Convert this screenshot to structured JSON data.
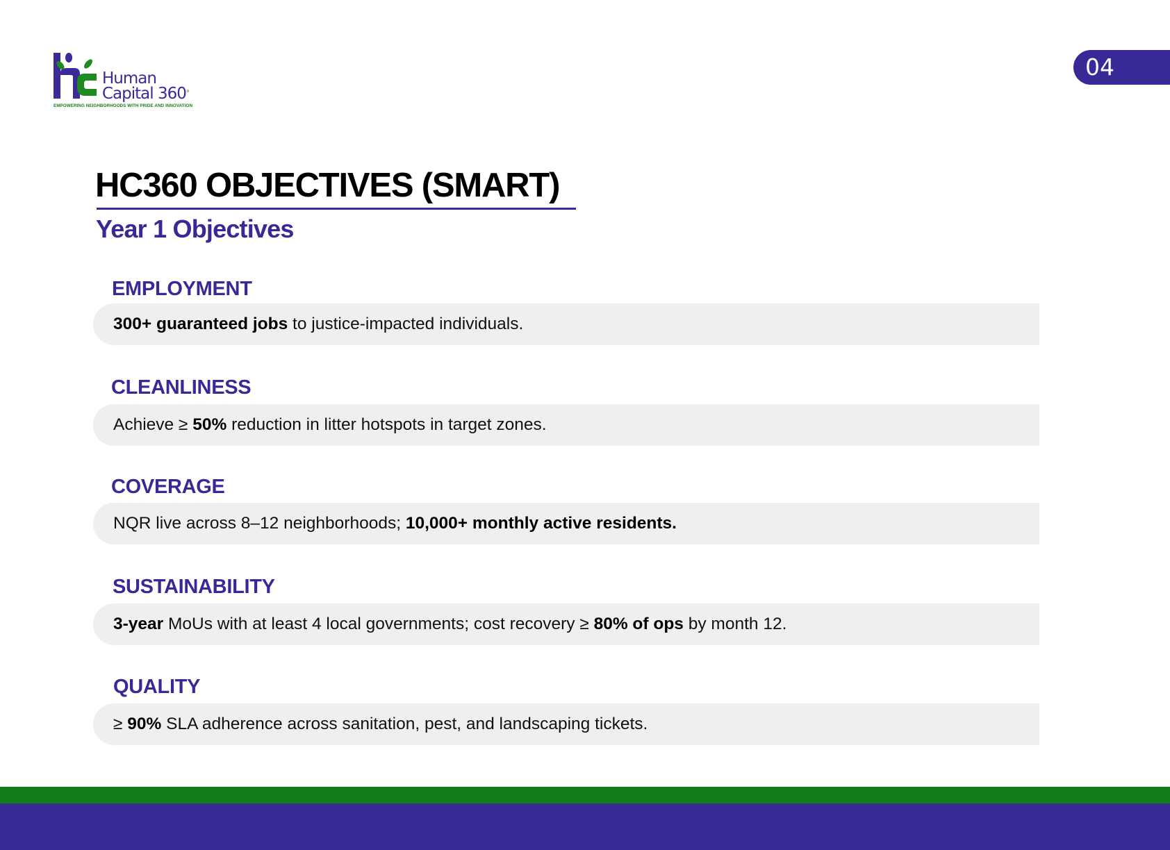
{
  "logo": {
    "name_line1": "Human",
    "name_line2": "Capital 360",
    "degree": "°",
    "tagline": "EMPOWERING NEIGHBORHOODS WITH PRIDE AND INNOVATION"
  },
  "page_number": "04",
  "title": "HC360 OBJECTIVES (SMART)",
  "subtitle": "Year 1 Objectives",
  "objectives": [
    {
      "heading": "EMPLOYMENT",
      "parts": [
        "300+ guaranteed jobs",
        " to justice-impacted individuals."
      ]
    },
    {
      "heading": "CLEANLINESS",
      "parts": [
        "Achieve ≥ ",
        "50%",
        " reduction in litter hotspots in target zones."
      ]
    },
    {
      "heading": "COVERAGE",
      "parts": [
        "NQR live across 8–12 neighborhoods; ",
        "10,000+ monthly active residents."
      ]
    },
    {
      "heading": "SUSTAINABILITY",
      "parts": [
        "3-year",
        " MoUs with at least 4 local governments; cost recovery ≥ ",
        "80% of ops",
        " by month 12."
      ]
    },
    {
      "heading": "QUALITY",
      "parts": [
        "≥ ",
        "90%",
        " SLA adherence across sanitation, pest, and landscaping tickets."
      ]
    }
  ],
  "colors": {
    "brand_purple": "#382a96",
    "brand_green": "#127c19",
    "bar_background": "#efefef"
  }
}
